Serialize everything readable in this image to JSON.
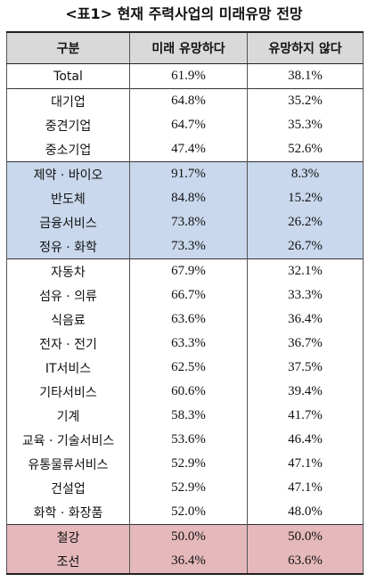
{
  "title": "<표1> 현재 주력사업의 미래유망 전망",
  "table": {
    "headers": [
      "구분",
      "미래 유망하다",
      "유망하지 않다"
    ],
    "rows": [
      {
        "label": "Total",
        "yes": "61.9%",
        "no": "38.1%"
      },
      {
        "label": "대기업",
        "yes": "64.8%",
        "no": "35.2%"
      },
      {
        "label": "중견기업",
        "yes": "64.7%",
        "no": "35.3%"
      },
      {
        "label": "중소기업",
        "yes": "47.4%",
        "no": "52.6%"
      },
      {
        "label": "제약 · 바이오",
        "yes": "91.7%",
        "no": "8.3%"
      },
      {
        "label": "반도체",
        "yes": "84.8%",
        "no": "15.2%"
      },
      {
        "label": "금융서비스",
        "yes": "73.8%",
        "no": "26.2%"
      },
      {
        "label": "정유 · 화학",
        "yes": "73.3%",
        "no": "26.7%"
      },
      {
        "label": "자동차",
        "yes": "67.9%",
        "no": "32.1%"
      },
      {
        "label": "섬유 · 의류",
        "yes": "66.7%",
        "no": "33.3%"
      },
      {
        "label": "식음료",
        "yes": "63.6%",
        "no": "36.4%"
      },
      {
        "label": "전자 · 전기",
        "yes": "63.3%",
        "no": "36.7%"
      },
      {
        "label": "IT서비스",
        "yes": "62.5%",
        "no": "37.5%"
      },
      {
        "label": "기타서비스",
        "yes": "60.6%",
        "no": "39.4%"
      },
      {
        "label": "기계",
        "yes": "58.3%",
        "no": "41.7%"
      },
      {
        "label": "교육 · 기술서비스",
        "yes": "53.6%",
        "no": "46.4%"
      },
      {
        "label": "유통물류서비스",
        "yes": "52.9%",
        "no": "47.1%"
      },
      {
        "label": "건설업",
        "yes": "52.9%",
        "no": "47.1%"
      },
      {
        "label": "화학 · 화장품",
        "yes": "52.0%",
        "no": "48.0%"
      },
      {
        "label": "철강",
        "yes": "50.0%",
        "no": "50.0%"
      },
      {
        "label": "조선",
        "yes": "36.4%",
        "no": "63.6%"
      }
    ]
  },
  "colors": {
    "header": "#d9d9d9",
    "highlight_blue": "#c9d8ec",
    "highlight_red": "#e5b8bc"
  }
}
